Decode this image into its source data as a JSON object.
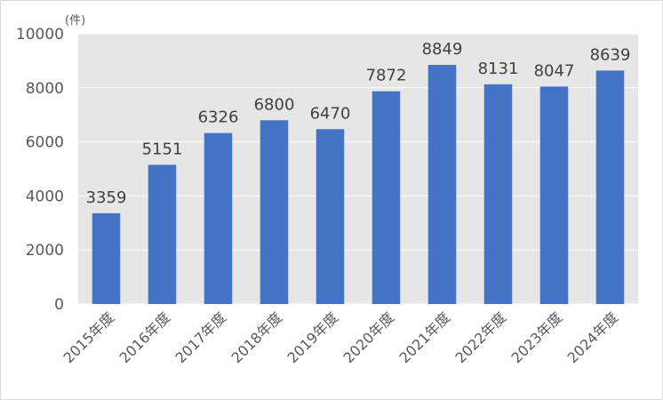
{
  "chart_data": {
    "type": "bar",
    "unit_label": "(件)",
    "categories": [
      "2015年度",
      "2016年度",
      "2017年度",
      "2018年度",
      "2019年度",
      "2020年度",
      "2021年度",
      "2022年度",
      "2023年度",
      "2024年度"
    ],
    "series": [
      {
        "values": [
          3359,
          5151,
          6326,
          6800,
          6470,
          7872,
          8849,
          8131,
          8047,
          8639
        ]
      }
    ],
    "y_ticks": [
      "0",
      "2000",
      "4000",
      "6000",
      "8000",
      "10000"
    ],
    "ylim": [
      0,
      10000
    ],
    "grid": true,
    "legend": "none",
    "colors": {
      "bar": "#4472c4",
      "plot_background": "#e7e6e6",
      "grid": "#ffffff",
      "text": "#595959"
    }
  }
}
